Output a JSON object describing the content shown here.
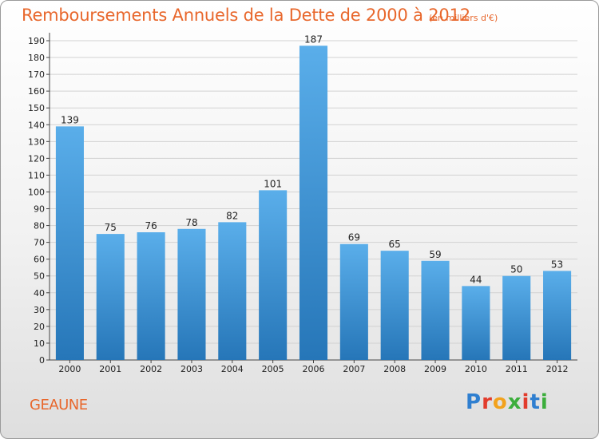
{
  "header": {
    "title": "Remboursements Annuels de la Dette de 2000 à 2012",
    "subtitle": "(en milliers d'€)"
  },
  "footer": {
    "commune": "GEAUNE",
    "logo_letters": [
      "P",
      "r",
      "o",
      "x",
      "i",
      "t",
      "i"
    ]
  },
  "colors": {
    "bar_top": "#5aaeea",
    "bar_bottom": "#2676b8",
    "title": "#e8672c",
    "grid": "#d2d2d2"
  },
  "chart_data": {
    "type": "bar",
    "title": "Remboursements Annuels de la Dette de 2000 à 2012",
    "subtitle": "(en milliers d'€)",
    "xlabel": "",
    "ylabel": "",
    "categories": [
      "2000",
      "2001",
      "2002",
      "2003",
      "2004",
      "2005",
      "2006",
      "2007",
      "2008",
      "2009",
      "2010",
      "2011",
      "2012"
    ],
    "values": [
      139,
      75,
      76,
      78,
      82,
      101,
      187,
      69,
      65,
      59,
      44,
      50,
      53
    ],
    "ylim": [
      0,
      190
    ],
    "yticks": [
      0,
      10,
      20,
      30,
      40,
      50,
      60,
      70,
      80,
      90,
      100,
      110,
      120,
      130,
      140,
      150,
      160,
      170,
      180,
      190
    ],
    "grid": true,
    "data_labels": true
  }
}
